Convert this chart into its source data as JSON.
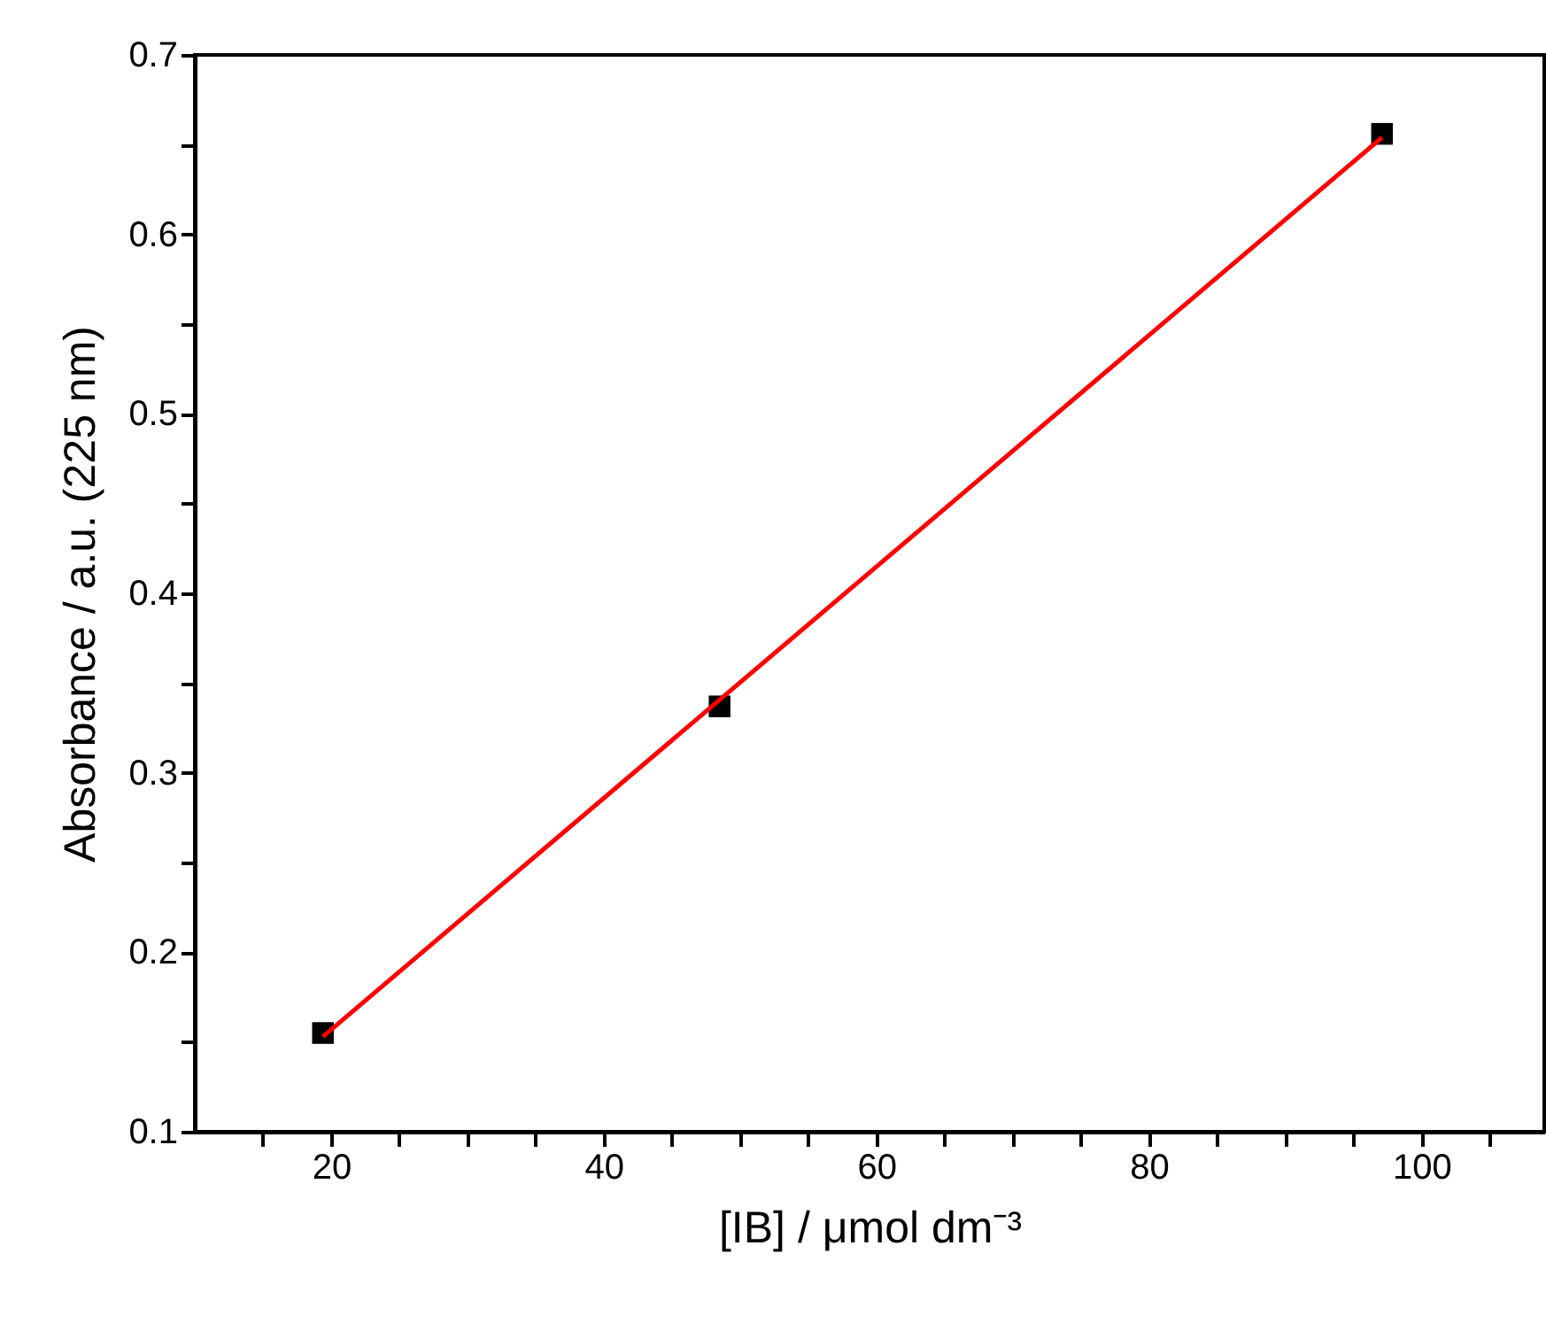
{
  "chart_data": {
    "type": "scatter",
    "xlabel": "[IB] / μmol dm⁻³",
    "ylabel": "Absorbance / a.u. (225 nm)",
    "series": [
      {
        "color": "#000000",
        "marker": "square",
        "x": [
          19.4,
          48.5,
          97.1
        ],
        "values": [
          0.155,
          0.337,
          0.656
        ]
      },
      {
        "type": "line",
        "color": "#ff0000",
        "marker": "none",
        "line_style": "solid",
        "x": [
          19.4,
          97.1
        ],
        "values": [
          0.153,
          0.654
        ]
      }
    ],
    "xlim": [
      10,
      109
    ],
    "ylim": [
      0.1,
      0.7
    ],
    "xticks": [
      {
        "value": 15,
        "label": null
      },
      20,
      {
        "value": 25,
        "label": null
      },
      {
        "value": 30,
        "label": null
      },
      {
        "value": 35,
        "label": null
      },
      40,
      {
        "value": 45,
        "label": null
      },
      {
        "value": 50,
        "label": null
      },
      {
        "value": 55,
        "label": null
      },
      60,
      {
        "value": 65,
        "label": null
      },
      {
        "value": 70,
        "label": null
      },
      {
        "value": 75,
        "label": null
      },
      80,
      {
        "value": 85,
        "label": null
      },
      {
        "value": 90,
        "label": null
      },
      {
        "value": 95,
        "label": null
      },
      100,
      {
        "value": 105,
        "label": null
      }
    ],
    "yticks": [
      0.1,
      {
        "value": 0.15,
        "label": null
      },
      0.2,
      {
        "value": 0.25,
        "label": null
      },
      0.3,
      {
        "value": 0.35,
        "label": null
      },
      0.4,
      {
        "value": 0.45,
        "label": null
      },
      0.5,
      {
        "value": 0.55,
        "label": null
      },
      0.6,
      {
        "value": 0.65,
        "label": null
      },
      0.7
    ],
    "grid": false
  }
}
